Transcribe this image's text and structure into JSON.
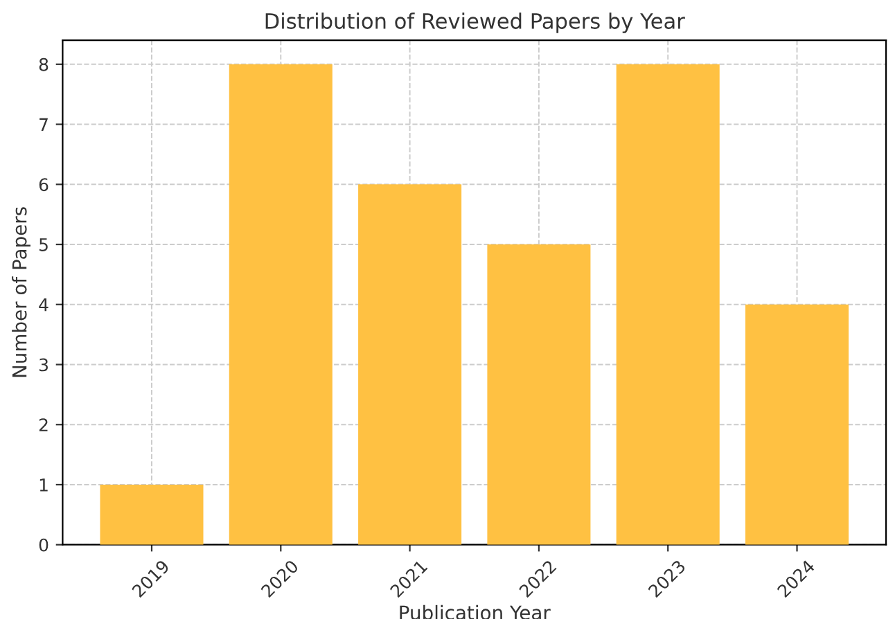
{
  "chart_data": {
    "type": "bar",
    "title": "Distribution of Reviewed Papers by Year",
    "xlabel": "Publication Year",
    "ylabel": "Number of Papers",
    "categories": [
      "2019",
      "2020",
      "2021",
      "2022",
      "2023",
      "2024"
    ],
    "values": [
      1,
      8,
      6,
      5,
      8,
      4
    ],
    "color": "#ffc142",
    "ylim": [
      0,
      8.4
    ],
    "yticks": [
      0,
      1,
      2,
      3,
      4,
      5,
      6,
      7,
      8
    ],
    "grid": true
  }
}
